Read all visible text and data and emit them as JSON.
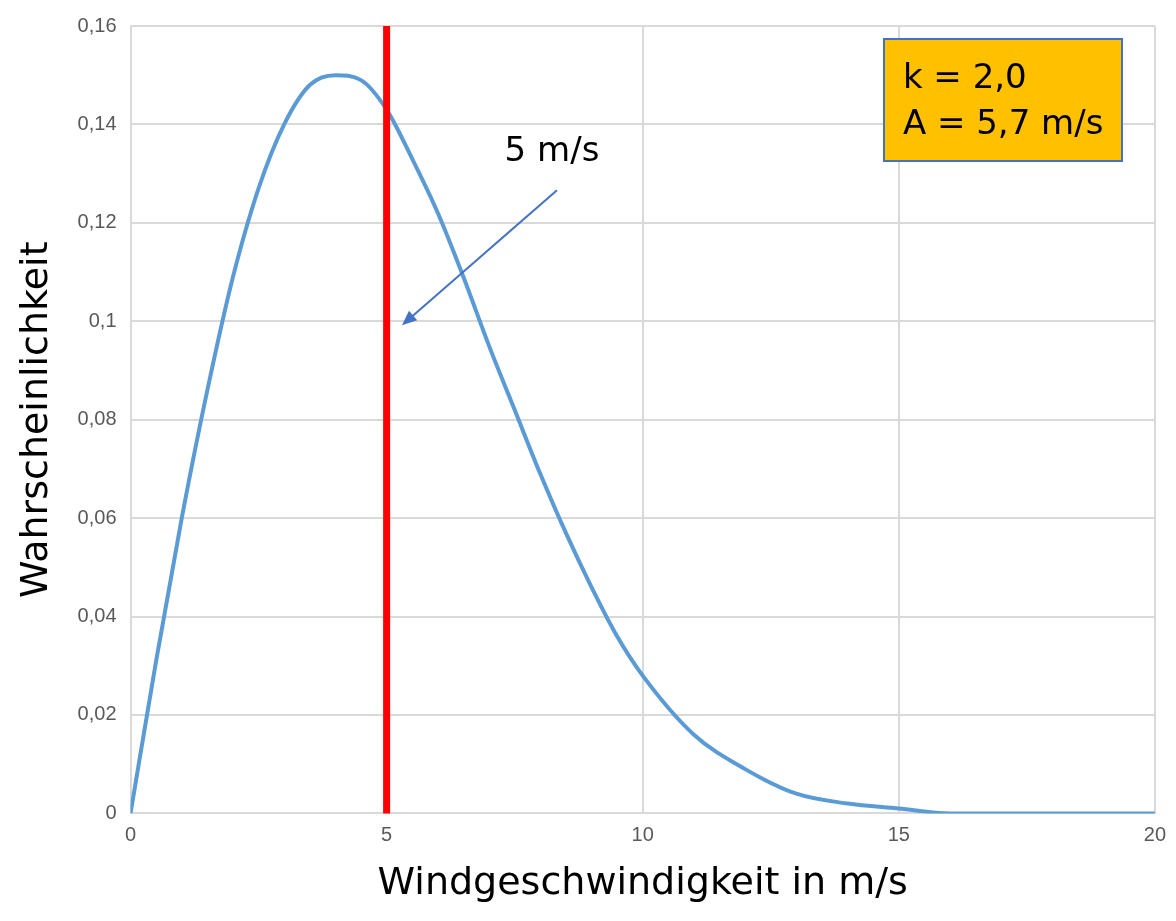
{
  "chart_data": {
    "type": "line",
    "xlabel": "Windgeschwindigkeit in m/s",
    "ylabel": "Wahrscheinlichkeit",
    "x": [
      0,
      0.5,
      1,
      1.5,
      2,
      2.5,
      3,
      3.5,
      4,
      4.5,
      5,
      5.5,
      6,
      6.5,
      7,
      7.5,
      8,
      8.5,
      9,
      9.5,
      10,
      11,
      12,
      13,
      14,
      15,
      16,
      18,
      20
    ],
    "series": [
      {
        "color": "#5b9bd5",
        "values": [
          0,
          0.031,
          0.06,
          0.086,
          0.109,
          0.127,
          0.14,
          0.148,
          0.15,
          0.149,
          0.143,
          0.133,
          0.122,
          0.109,
          0.095,
          0.082,
          0.069,
          0.057,
          0.046,
          0.036,
          0.028,
          0.016,
          0.009,
          0.004,
          0.002,
          0.001,
          0,
          0,
          0
        ]
      }
    ],
    "xlim": [
      0,
      20
    ],
    "xticks": [
      0,
      5,
      10,
      15,
      20
    ],
    "ylim": [
      0,
      0.16
    ],
    "yticks": [
      0,
      {
        "value": 0.02,
        "label": "0,02"
      },
      {
        "value": 0.04,
        "label": "0,04"
      },
      {
        "value": 0.06,
        "label": "0,06"
      },
      {
        "value": 0.08,
        "label": "0,08"
      },
      {
        "value": 0.1,
        "label": "0,1"
      },
      {
        "value": 0.12,
        "label": "0,12"
      },
      {
        "value": 0.14,
        "label": "0,14"
      },
      {
        "value": 0.16,
        "label": "0,16"
      }
    ],
    "ref_lines": [
      {
        "axis": "x",
        "value": 5,
        "color": "#ff0000"
      }
    ],
    "annotations": [
      "5 m/s",
      "k = 2,0",
      "A = 5,7 m/s"
    ],
    "grid": true,
    "legend": false,
    "marker": "none",
    "line_style": "solid"
  }
}
